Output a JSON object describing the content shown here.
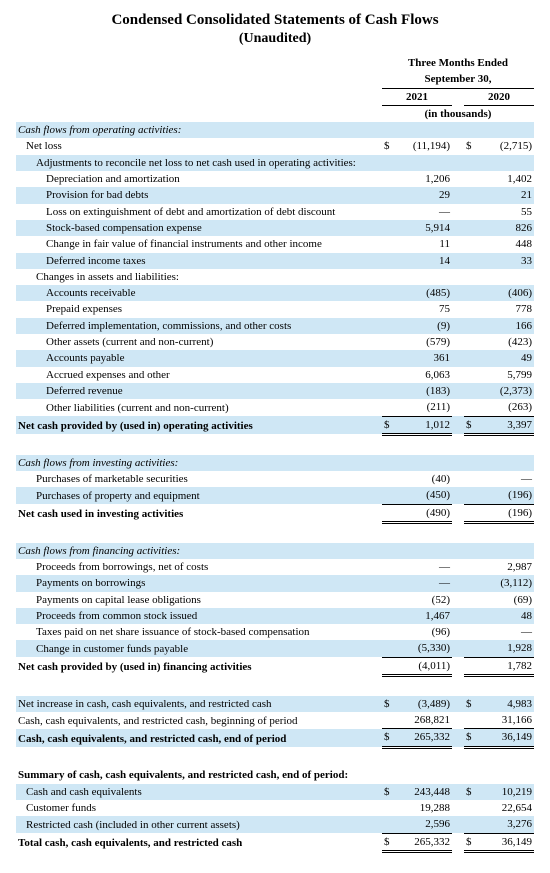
{
  "title": "Condensed Consolidated Statements of Cash Flows",
  "subtitle": "(Unaudited)",
  "period_header": "Three Months Ended",
  "period_sub": "September 30,",
  "year1": "2021",
  "year2": "2020",
  "units": "(in thousands)",
  "rows": [
    {
      "label": "Cash flows from operating activities:",
      "cls": "section",
      "z": true
    },
    {
      "label": "Net loss",
      "cls": "indent1",
      "c1": "$",
      "v1": "(11,194)",
      "c2": "$",
      "v2": "(2,715)"
    },
    {
      "label": "Adjustments to reconcile net loss to net cash used in operating activities:",
      "cls": "indent2",
      "z": true
    },
    {
      "label": "Depreciation and amortization",
      "cls": "indent3",
      "v1": "1,206",
      "v2": "1,402"
    },
    {
      "label": "Provision for bad debts",
      "cls": "indent3",
      "z": true,
      "v1": "29",
      "v2": "21"
    },
    {
      "label": "Loss on extinguishment of debt and amortization of debt discount",
      "cls": "indent3",
      "v1": "—",
      "v2": "55"
    },
    {
      "label": "Stock-based compensation expense",
      "cls": "indent3",
      "z": true,
      "v1": "5,914",
      "v2": "826"
    },
    {
      "label": "Change in fair value of financial instruments and other income",
      "cls": "indent3",
      "v1": "11",
      "v2": "448"
    },
    {
      "label": "Deferred income taxes",
      "cls": "indent3",
      "z": true,
      "v1": "14",
      "v2": "33"
    },
    {
      "label": "Changes in assets and liabilities:",
      "cls": "indent2"
    },
    {
      "label": "Accounts receivable",
      "cls": "indent3",
      "z": true,
      "v1": "(485)",
      "v2": "(406)"
    },
    {
      "label": "Prepaid expenses",
      "cls": "indent3",
      "v1": "75",
      "v2": "778"
    },
    {
      "label": "Deferred implementation, commissions, and other costs",
      "cls": "indent3",
      "z": true,
      "v1": "(9)",
      "v2": "166"
    },
    {
      "label": "Other assets (current and non-current)",
      "cls": "indent3",
      "v1": "(579)",
      "v2": "(423)"
    },
    {
      "label": "Accounts payable",
      "cls": "indent3",
      "z": true,
      "v1": "361",
      "v2": "49"
    },
    {
      "label": "Accrued expenses and other",
      "cls": "indent3",
      "v1": "6,063",
      "v2": "5,799"
    },
    {
      "label": "Deferred revenue",
      "cls": "indent3",
      "z": true,
      "v1": "(183)",
      "v2": "(2,373)"
    },
    {
      "label": "Other liabilities (current and non-current)",
      "cls": "indent3",
      "v1": "(211)",
      "v2": "(263)",
      "ul": true
    },
    {
      "label": "Net cash provided by (used in) operating activities",
      "cls": "bold",
      "z": true,
      "c1": "$",
      "v1": "1,012",
      "c2": "$",
      "v2": "3,397",
      "dbl": true
    },
    {
      "label": " ",
      "spacer": true
    },
    {
      "label": "Cash flows from investing activities:",
      "cls": "section",
      "z": true
    },
    {
      "label": "Purchases of marketable securities",
      "cls": "indent2",
      "v1": "(40)",
      "v2": "—"
    },
    {
      "label": "Purchases of property and equipment",
      "cls": "indent2",
      "z": true,
      "v1": "(450)",
      "v2": "(196)",
      "ul": true
    },
    {
      "label": "Net cash used in investing activities",
      "cls": "bold",
      "v1": "(490)",
      "v2": "(196)",
      "dbl": true
    },
    {
      "label": " ",
      "spacer": true
    },
    {
      "label": "Cash flows from financing activities:",
      "cls": "section",
      "z": true
    },
    {
      "label": "Proceeds from borrowings, net of costs",
      "cls": "indent2",
      "v1": "—",
      "v2": "2,987"
    },
    {
      "label": "Payments on borrowings",
      "cls": "indent2",
      "z": true,
      "v1": "—",
      "v2": "(3,112)"
    },
    {
      "label": "Payments on capital lease obligations",
      "cls": "indent2",
      "v1": "(52)",
      "v2": "(69)"
    },
    {
      "label": "Proceeds from common stock issued",
      "cls": "indent2",
      "z": true,
      "v1": "1,467",
      "v2": "48"
    },
    {
      "label": "Taxes paid on net share issuance of stock-based compensation",
      "cls": "indent2",
      "v1": "(96)",
      "v2": "—"
    },
    {
      "label": "Change in customer funds payable",
      "cls": "indent2",
      "z": true,
      "v1": "(5,330)",
      "v2": "1,928",
      "ul": true
    },
    {
      "label": "Net cash provided by (used in) financing activities",
      "cls": "bold",
      "v1": "(4,011)",
      "v2": "1,782",
      "dbl": true
    },
    {
      "label": " ",
      "spacer": true
    },
    {
      "label": "Net increase in cash, cash equivalents, and restricted cash",
      "z": true,
      "c1": "$",
      "v1": "(3,489)",
      "c2": "$",
      "v2": "4,983"
    },
    {
      "label": "Cash, cash equivalents, and restricted cash, beginning of period",
      "v1": "268,821",
      "v2": "31,166",
      "ul": true
    },
    {
      "label": "Cash, cash equivalents, and restricted cash, end of period",
      "cls": "bold",
      "z": true,
      "c1": "$",
      "v1": "265,332",
      "c2": "$",
      "v2": "36,149",
      "dbl": true
    },
    {
      "label": " ",
      "spacer": true
    },
    {
      "label": "Summary of cash, cash equivalents, and restricted cash, end of period:",
      "cls": "bold"
    },
    {
      "label": "Cash and cash equivalents",
      "cls": "indent1",
      "z": true,
      "c1": "$",
      "v1": "243,448",
      "c2": "$",
      "v2": "10,219"
    },
    {
      "label": "Customer funds",
      "cls": "indent1",
      "v1": "19,288",
      "v2": "22,654"
    },
    {
      "label": "Restricted cash (included in other current assets)",
      "cls": "indent1",
      "z": true,
      "v1": "2,596",
      "v2": "3,276",
      "ul": true
    },
    {
      "label": "Total cash, cash equivalents, and restricted cash",
      "cls": "bold",
      "c1": "$",
      "v1": "265,332",
      "c2": "$",
      "v2": "36,149",
      "dbl": true
    }
  ]
}
